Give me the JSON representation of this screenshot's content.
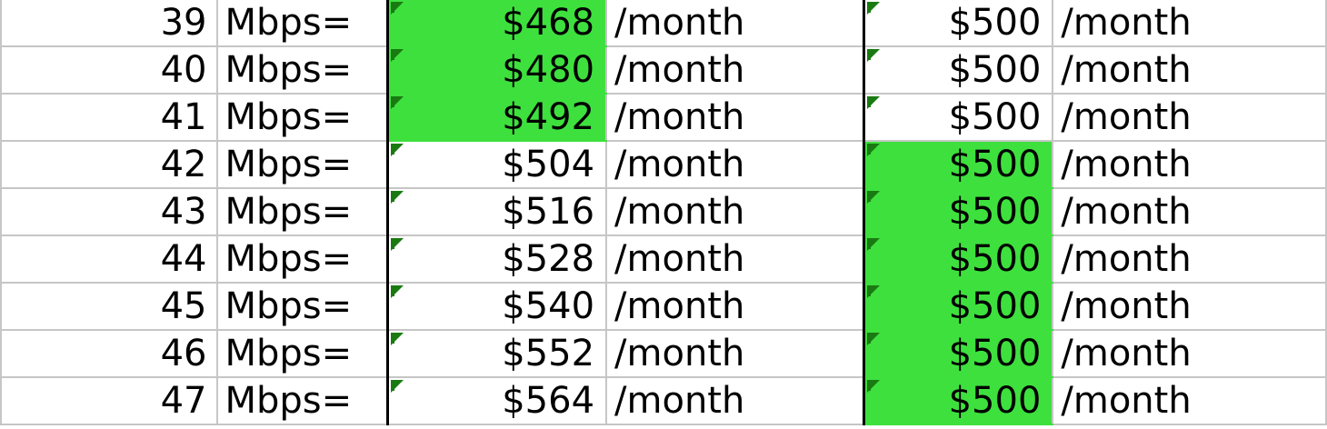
{
  "highlight_color": "#3ee03e",
  "flag_color": "#1a7a12",
  "rows": [
    {
      "speed": "39",
      "unit": "Mbps=",
      "offer_a": "$468",
      "offer_a_per": "/month",
      "offer_a_highlight": true,
      "offer_b": "$500",
      "offer_b_per": "/month",
      "offer_b_highlight": false
    },
    {
      "speed": "40",
      "unit": "Mbps=",
      "offer_a": "$480",
      "offer_a_per": "/month",
      "offer_a_highlight": true,
      "offer_b": "$500",
      "offer_b_per": "/month",
      "offer_b_highlight": false
    },
    {
      "speed": "41",
      "unit": "Mbps=",
      "offer_a": "$492",
      "offer_a_per": "/month",
      "offer_a_highlight": true,
      "offer_b": "$500",
      "offer_b_per": "/month",
      "offer_b_highlight": false
    },
    {
      "speed": "42",
      "unit": "Mbps=",
      "offer_a": "$504",
      "offer_a_per": "/month",
      "offer_a_highlight": false,
      "offer_b": "$500",
      "offer_b_per": "/month",
      "offer_b_highlight": true
    },
    {
      "speed": "43",
      "unit": "Mbps=",
      "offer_a": "$516",
      "offer_a_per": "/month",
      "offer_a_highlight": false,
      "offer_b": "$500",
      "offer_b_per": "/month",
      "offer_b_highlight": true
    },
    {
      "speed": "44",
      "unit": "Mbps=",
      "offer_a": "$528",
      "offer_a_per": "/month",
      "offer_a_highlight": false,
      "offer_b": "$500",
      "offer_b_per": "/month",
      "offer_b_highlight": true
    },
    {
      "speed": "45",
      "unit": "Mbps=",
      "offer_a": "$540",
      "offer_a_per": "/month",
      "offer_a_highlight": false,
      "offer_b": "$500",
      "offer_b_per": "/month",
      "offer_b_highlight": true
    },
    {
      "speed": "46",
      "unit": "Mbps=",
      "offer_a": "$552",
      "offer_a_per": "/month",
      "offer_a_highlight": false,
      "offer_b": "$500",
      "offer_b_per": "/month",
      "offer_b_highlight": true
    },
    {
      "speed": "47",
      "unit": "Mbps=",
      "offer_a": "$564",
      "offer_a_per": "/month",
      "offer_a_highlight": false,
      "offer_b": "$500",
      "offer_b_per": "/month",
      "offer_b_highlight": true
    }
  ]
}
